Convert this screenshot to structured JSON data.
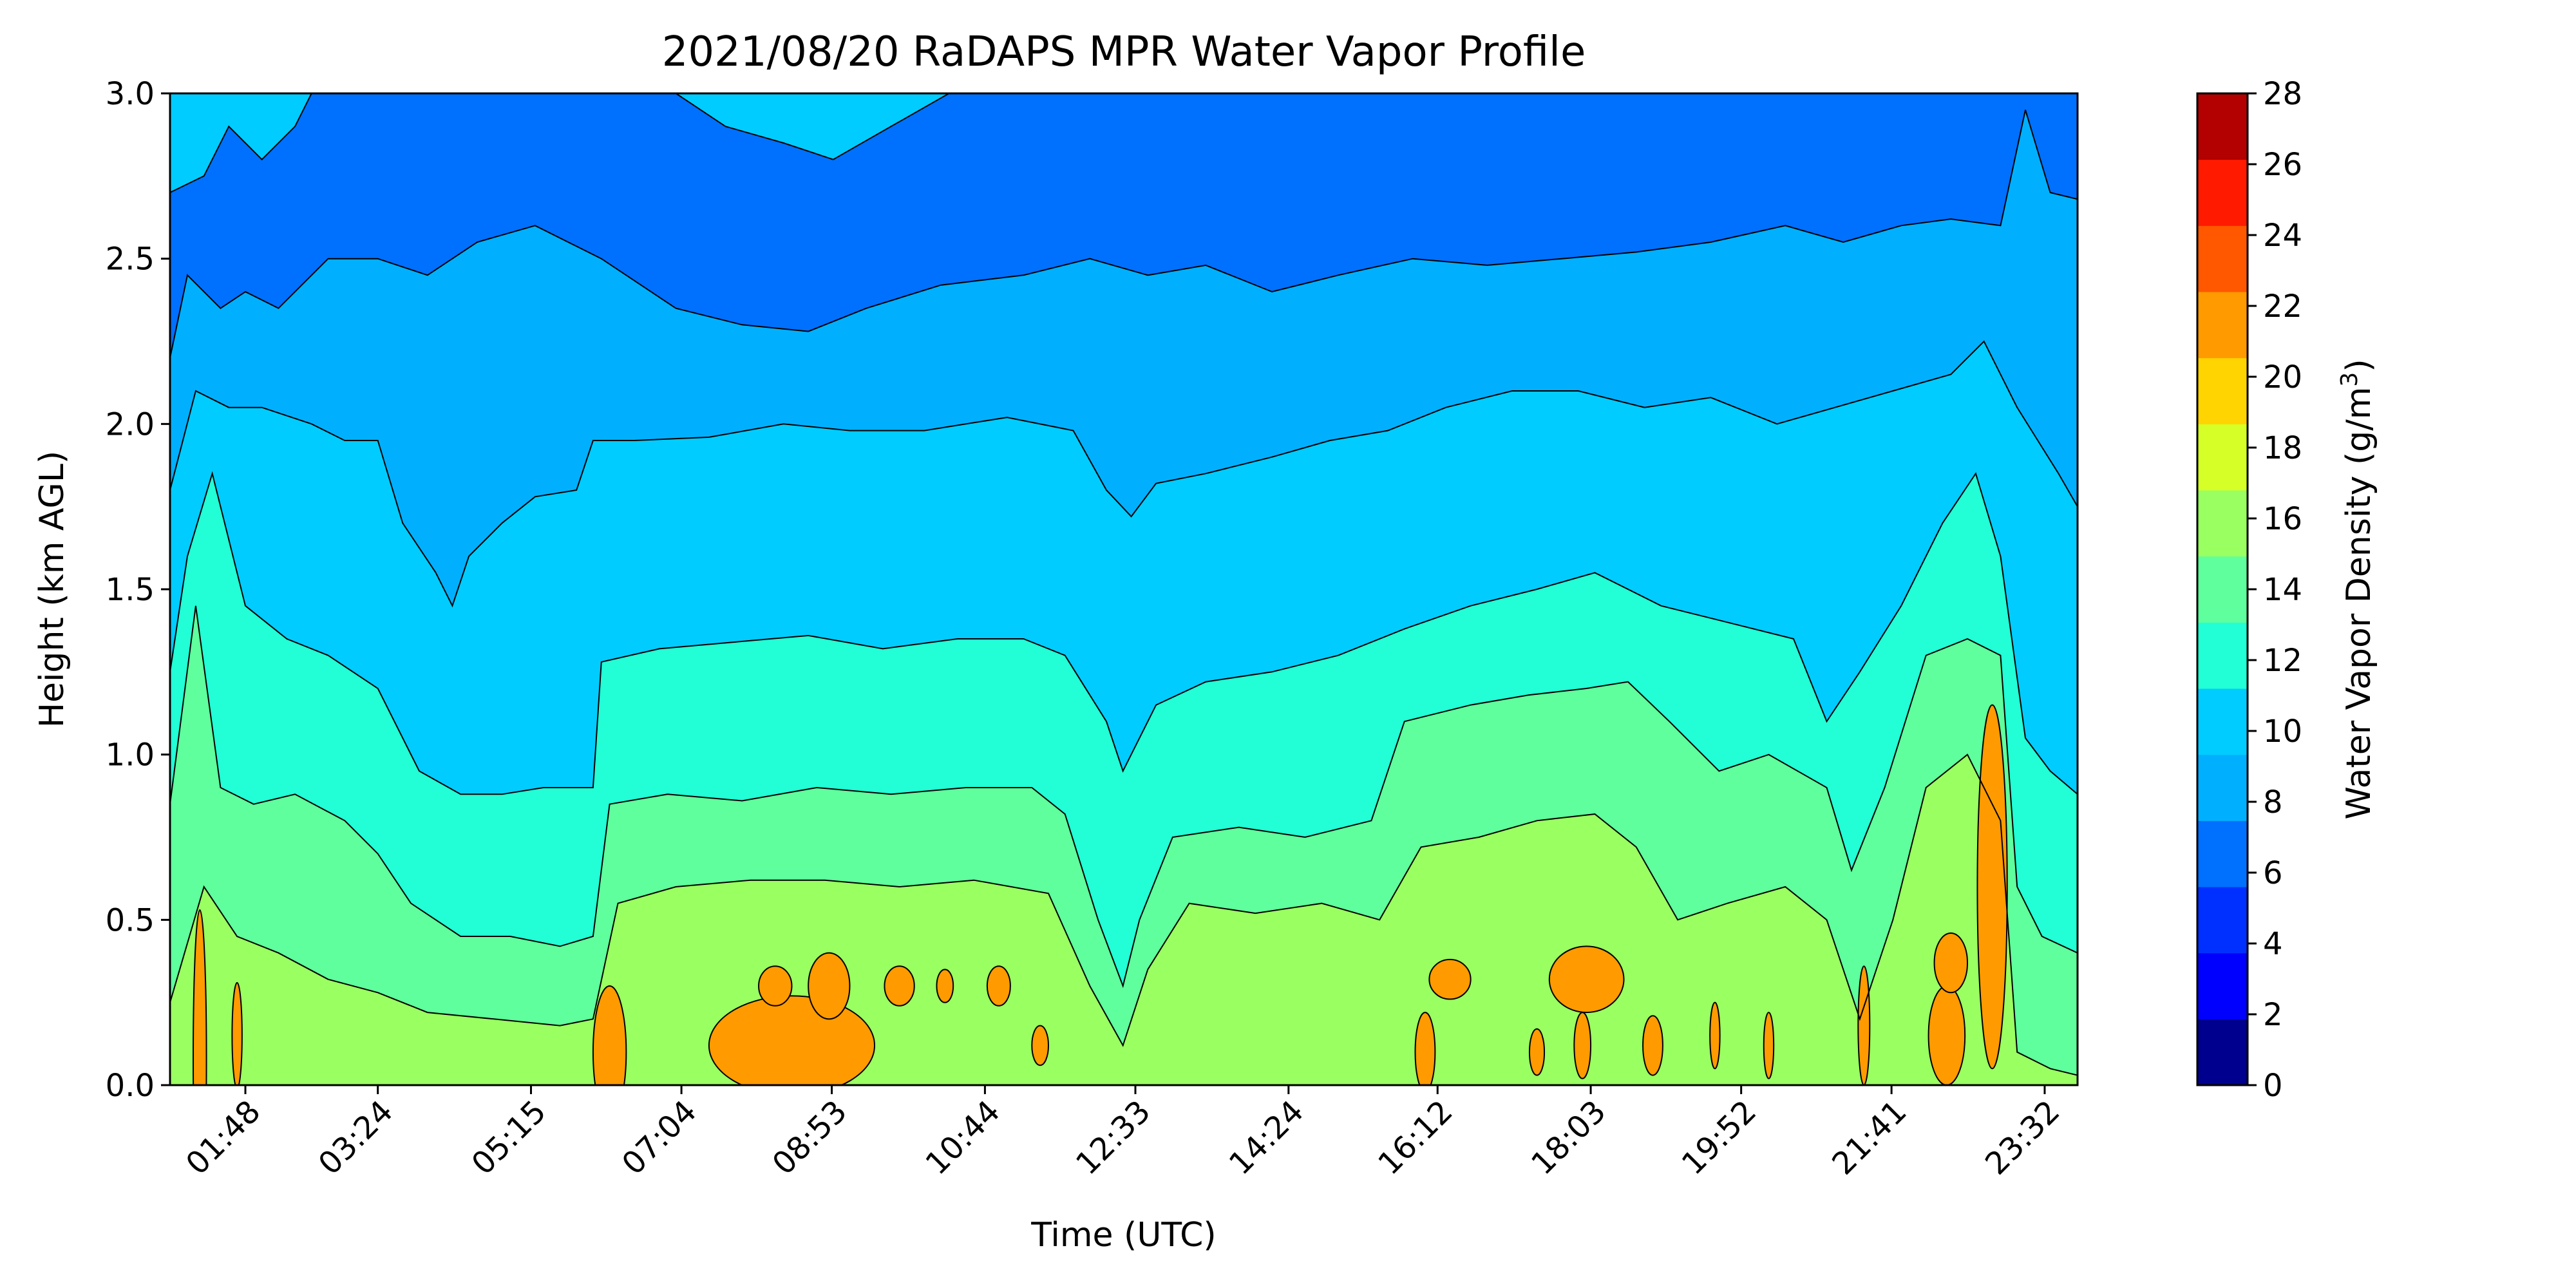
{
  "chart_data": {
    "type": "contour",
    "title": "2021/08/20 RaDAPS MPR Water Vapor Profile",
    "xlabel": "Time (UTC)",
    "ylabel": "Height (km AGL)",
    "colorbar_label_main": "Water Vapor Density (g/m",
    "colorbar_label_sup": "3",
    "colorbar_label_end": ")",
    "xticks": [
      "01:48",
      "03:24",
      "05:15",
      "07:04",
      "08:53",
      "10:44",
      "12:33",
      "14:24",
      "16:12",
      "18:03",
      "19:52",
      "21:41",
      "23:32"
    ],
    "xtick_hours": [
      1.8,
      3.4,
      5.25,
      7.067,
      8.883,
      10.733,
      12.55,
      14.4,
      16.2,
      18.05,
      19.867,
      21.683,
      23.533
    ],
    "xlim_hours": [
      0.89,
      23.93
    ],
    "yticks": [
      "0.0",
      "0.5",
      "1.0",
      "1.5",
      "2.0",
      "2.5",
      "3.0"
    ],
    "ylim": [
      0,
      3
    ],
    "levels": [
      0,
      2,
      4,
      6,
      8,
      10,
      12,
      14,
      16,
      18,
      20,
      22,
      24,
      26,
      28
    ],
    "level_labels": [
      "0",
      "2",
      "4",
      "6",
      "8",
      "10",
      "12",
      "14",
      "16",
      "18",
      "20",
      "22",
      "24",
      "26",
      "28"
    ],
    "colors": [
      "#00008f",
      "#0000ff",
      "#0030ff",
      "#0070ff",
      "#00b0ff",
      "#00ccff",
      "#22ffd6",
      "#5fff9d",
      "#9aff61",
      "#d6ff27",
      "#ffd400",
      "#ff9a00",
      "#ff5800",
      "#ff1a00",
      "#b30000"
    ],
    "contour_lines": [
      {
        "level": 6,
        "points": [
          [
            0.89,
            2.7
          ],
          [
            1.3,
            2.75
          ],
          [
            1.6,
            2.9
          ],
          [
            1.8,
            2.85
          ],
          [
            2.0,
            2.8
          ],
          [
            2.4,
            2.9
          ],
          [
            2.6,
            3.0
          ],
          [
            7.0,
            3.0
          ],
          [
            7.6,
            2.9
          ],
          [
            8.3,
            2.85
          ],
          [
            8.9,
            2.8
          ],
          [
            9.6,
            2.9
          ],
          [
            10.3,
            3.0
          ],
          [
            23.93,
            3.0
          ]
        ]
      },
      {
        "level": 8,
        "points": [
          [
            0.89,
            2.2
          ],
          [
            1.1,
            2.45
          ],
          [
            1.5,
            2.35
          ],
          [
            1.8,
            2.4
          ],
          [
            2.2,
            2.35
          ],
          [
            2.8,
            2.5
          ],
          [
            3.4,
            2.5
          ],
          [
            4.0,
            2.45
          ],
          [
            4.6,
            2.55
          ],
          [
            5.3,
            2.6
          ],
          [
            6.1,
            2.5
          ],
          [
            7.0,
            2.35
          ],
          [
            7.8,
            2.3
          ],
          [
            8.6,
            2.28
          ],
          [
            9.3,
            2.35
          ],
          [
            10.2,
            2.42
          ],
          [
            11.2,
            2.45
          ],
          [
            12.0,
            2.5
          ],
          [
            12.7,
            2.45
          ],
          [
            13.4,
            2.48
          ],
          [
            14.2,
            2.4
          ],
          [
            15.0,
            2.45
          ],
          [
            15.9,
            2.5
          ],
          [
            16.8,
            2.48
          ],
          [
            17.7,
            2.5
          ],
          [
            18.6,
            2.52
          ],
          [
            19.5,
            2.55
          ],
          [
            20.4,
            2.6
          ],
          [
            21.1,
            2.55
          ],
          [
            21.8,
            2.6
          ],
          [
            22.4,
            2.62
          ],
          [
            23.0,
            2.6
          ],
          [
            23.3,
            2.95
          ],
          [
            23.6,
            2.7
          ],
          [
            23.93,
            2.68
          ]
        ]
      },
      {
        "level": 10,
        "points": [
          [
            0.89,
            1.8
          ],
          [
            1.2,
            2.1
          ],
          [
            1.6,
            2.05
          ],
          [
            2.0,
            2.05
          ],
          [
            2.6,
            2.0
          ],
          [
            3.0,
            1.95
          ],
          [
            3.4,
            1.95
          ],
          [
            3.7,
            1.7
          ],
          [
            4.1,
            1.55
          ],
          [
            4.3,
            1.45
          ],
          [
            4.5,
            1.6
          ],
          [
            4.9,
            1.7
          ],
          [
            5.3,
            1.78
          ],
          [
            5.8,
            1.8
          ],
          [
            6.0,
            1.95
          ],
          [
            6.5,
            1.95
          ],
          [
            7.4,
            1.96
          ],
          [
            8.3,
            2.0
          ],
          [
            9.1,
            1.98
          ],
          [
            10.0,
            1.98
          ],
          [
            11.0,
            2.02
          ],
          [
            11.8,
            1.98
          ],
          [
            12.2,
            1.8
          ],
          [
            12.5,
            1.72
          ],
          [
            12.8,
            1.82
          ],
          [
            13.4,
            1.85
          ],
          [
            14.2,
            1.9
          ],
          [
            14.9,
            1.95
          ],
          [
            15.6,
            1.98
          ],
          [
            16.3,
            2.05
          ],
          [
            17.1,
            2.1
          ],
          [
            17.9,
            2.1
          ],
          [
            18.7,
            2.05
          ],
          [
            19.5,
            2.08
          ],
          [
            20.3,
            2.0
          ],
          [
            21.0,
            2.05
          ],
          [
            21.7,
            2.1
          ],
          [
            22.4,
            2.15
          ],
          [
            22.8,
            2.25
          ],
          [
            23.2,
            2.05
          ],
          [
            23.7,
            1.85
          ],
          [
            23.93,
            1.75
          ]
        ]
      },
      {
        "level": 12,
        "points": [
          [
            0.89,
            1.25
          ],
          [
            1.1,
            1.6
          ],
          [
            1.4,
            1.85
          ],
          [
            1.8,
            1.45
          ],
          [
            2.3,
            1.35
          ],
          [
            2.8,
            1.3
          ],
          [
            3.4,
            1.2
          ],
          [
            3.9,
            0.95
          ],
          [
            4.4,
            0.88
          ],
          [
            4.9,
            0.88
          ],
          [
            5.4,
            0.9
          ],
          [
            6.0,
            0.9
          ],
          [
            6.1,
            1.28
          ],
          [
            6.8,
            1.32
          ],
          [
            7.7,
            1.34
          ],
          [
            8.6,
            1.36
          ],
          [
            9.5,
            1.32
          ],
          [
            10.4,
            1.35
          ],
          [
            11.2,
            1.35
          ],
          [
            11.7,
            1.3
          ],
          [
            12.2,
            1.1
          ],
          [
            12.4,
            0.95
          ],
          [
            12.8,
            1.15
          ],
          [
            13.4,
            1.22
          ],
          [
            14.2,
            1.25
          ],
          [
            15.0,
            1.3
          ],
          [
            15.8,
            1.38
          ],
          [
            16.6,
            1.45
          ],
          [
            17.4,
            1.5
          ],
          [
            18.1,
            1.55
          ],
          [
            18.9,
            1.45
          ],
          [
            19.7,
            1.4
          ],
          [
            20.5,
            1.35
          ],
          [
            20.9,
            1.1
          ],
          [
            21.3,
            1.25
          ],
          [
            21.8,
            1.45
          ],
          [
            22.3,
            1.7
          ],
          [
            22.7,
            1.85
          ],
          [
            23.0,
            1.6
          ],
          [
            23.3,
            1.05
          ],
          [
            23.6,
            0.95
          ],
          [
            23.93,
            0.88
          ]
        ]
      },
      {
        "level": 14,
        "points": [
          [
            0.89,
            0.85
          ],
          [
            1.2,
            1.45
          ],
          [
            1.5,
            0.9
          ],
          [
            1.9,
            0.85
          ],
          [
            2.4,
            0.88
          ],
          [
            3.0,
            0.8
          ],
          [
            3.4,
            0.7
          ],
          [
            3.8,
            0.55
          ],
          [
            4.4,
            0.45
          ],
          [
            5.0,
            0.45
          ],
          [
            5.6,
            0.42
          ],
          [
            6.0,
            0.45
          ],
          [
            6.2,
            0.85
          ],
          [
            6.9,
            0.88
          ],
          [
            7.8,
            0.86
          ],
          [
            8.7,
            0.9
          ],
          [
            9.6,
            0.88
          ],
          [
            10.5,
            0.9
          ],
          [
            11.3,
            0.9
          ],
          [
            11.7,
            0.82
          ],
          [
            12.1,
            0.5
          ],
          [
            12.4,
            0.3
          ],
          [
            12.6,
            0.5
          ],
          [
            13.0,
            0.75
          ],
          [
            13.8,
            0.78
          ],
          [
            14.6,
            0.75
          ],
          [
            15.4,
            0.8
          ],
          [
            15.8,
            1.1
          ],
          [
            16.6,
            1.15
          ],
          [
            17.3,
            1.18
          ],
          [
            18.0,
            1.2
          ],
          [
            18.5,
            1.22
          ],
          [
            19.0,
            1.1
          ],
          [
            19.6,
            0.95
          ],
          [
            20.2,
            1.0
          ],
          [
            20.9,
            0.9
          ],
          [
            21.2,
            0.65
          ],
          [
            21.6,
            0.9
          ],
          [
            22.1,
            1.3
          ],
          [
            22.6,
            1.35
          ],
          [
            23.0,
            1.3
          ],
          [
            23.2,
            0.6
          ],
          [
            23.5,
            0.45
          ],
          [
            23.93,
            0.4
          ]
        ]
      },
      {
        "level": 16,
        "points": [
          [
            0.89,
            0.25
          ],
          [
            1.3,
            0.6
          ],
          [
            1.7,
            0.45
          ],
          [
            2.2,
            0.4
          ],
          [
            2.8,
            0.32
          ],
          [
            3.4,
            0.28
          ],
          [
            4.0,
            0.22
          ],
          [
            4.8,
            0.2
          ],
          [
            5.6,
            0.18
          ],
          [
            6.0,
            0.2
          ],
          [
            6.3,
            0.55
          ],
          [
            7.0,
            0.6
          ],
          [
            7.9,
            0.62
          ],
          [
            8.8,
            0.62
          ],
          [
            9.7,
            0.6
          ],
          [
            10.6,
            0.62
          ],
          [
            11.5,
            0.58
          ],
          [
            12.0,
            0.3
          ],
          [
            12.4,
            0.12
          ],
          [
            12.7,
            0.35
          ],
          [
            13.2,
            0.55
          ],
          [
            14.0,
            0.52
          ],
          [
            14.8,
            0.55
          ],
          [
            15.5,
            0.5
          ],
          [
            16.0,
            0.72
          ],
          [
            16.7,
            0.75
          ],
          [
            17.4,
            0.8
          ],
          [
            18.1,
            0.82
          ],
          [
            18.6,
            0.72
          ],
          [
            19.1,
            0.5
          ],
          [
            19.7,
            0.55
          ],
          [
            20.4,
            0.6
          ],
          [
            20.9,
            0.5
          ],
          [
            21.3,
            0.2
          ],
          [
            21.7,
            0.5
          ],
          [
            22.1,
            0.9
          ],
          [
            22.6,
            1.0
          ],
          [
            23.0,
            0.8
          ],
          [
            23.2,
            0.1
          ],
          [
            23.6,
            0.05
          ],
          [
            23.93,
            0.03
          ]
        ]
      }
    ],
    "orange_patches": [
      [
        1.25,
        0.08,
        0.08,
        0.45
      ],
      [
        1.7,
        0.15,
        0.06,
        0.16
      ],
      [
        6.2,
        0.1,
        0.2,
        0.2
      ],
      [
        8.4,
        0.12,
        1.0,
        0.15
      ],
      [
        8.2,
        0.3,
        0.2,
        0.06
      ],
      [
        8.85,
        0.3,
        0.25,
        0.1
      ],
      [
        9.7,
        0.3,
        0.18,
        0.06
      ],
      [
        10.25,
        0.3,
        0.1,
        0.05
      ],
      [
        10.9,
        0.3,
        0.14,
        0.06
      ],
      [
        11.4,
        0.12,
        0.1,
        0.06
      ],
      [
        16.05,
        0.1,
        0.12,
        0.12
      ],
      [
        16.35,
        0.32,
        0.25,
        0.06
      ],
      [
        17.4,
        0.1,
        0.09,
        0.07
      ],
      [
        18.0,
        0.32,
        0.45,
        0.1
      ],
      [
        17.95,
        0.12,
        0.1,
        0.1
      ],
      [
        18.8,
        0.12,
        0.12,
        0.09
      ],
      [
        19.55,
        0.15,
        0.06,
        0.1
      ],
      [
        20.2,
        0.12,
        0.06,
        0.1
      ],
      [
        21.35,
        0.18,
        0.07,
        0.18
      ],
      [
        22.35,
        0.15,
        0.22,
        0.15
      ],
      [
        22.4,
        0.37,
        0.2,
        0.09
      ],
      [
        22.9,
        0.6,
        0.18,
        0.55
      ]
    ]
  }
}
